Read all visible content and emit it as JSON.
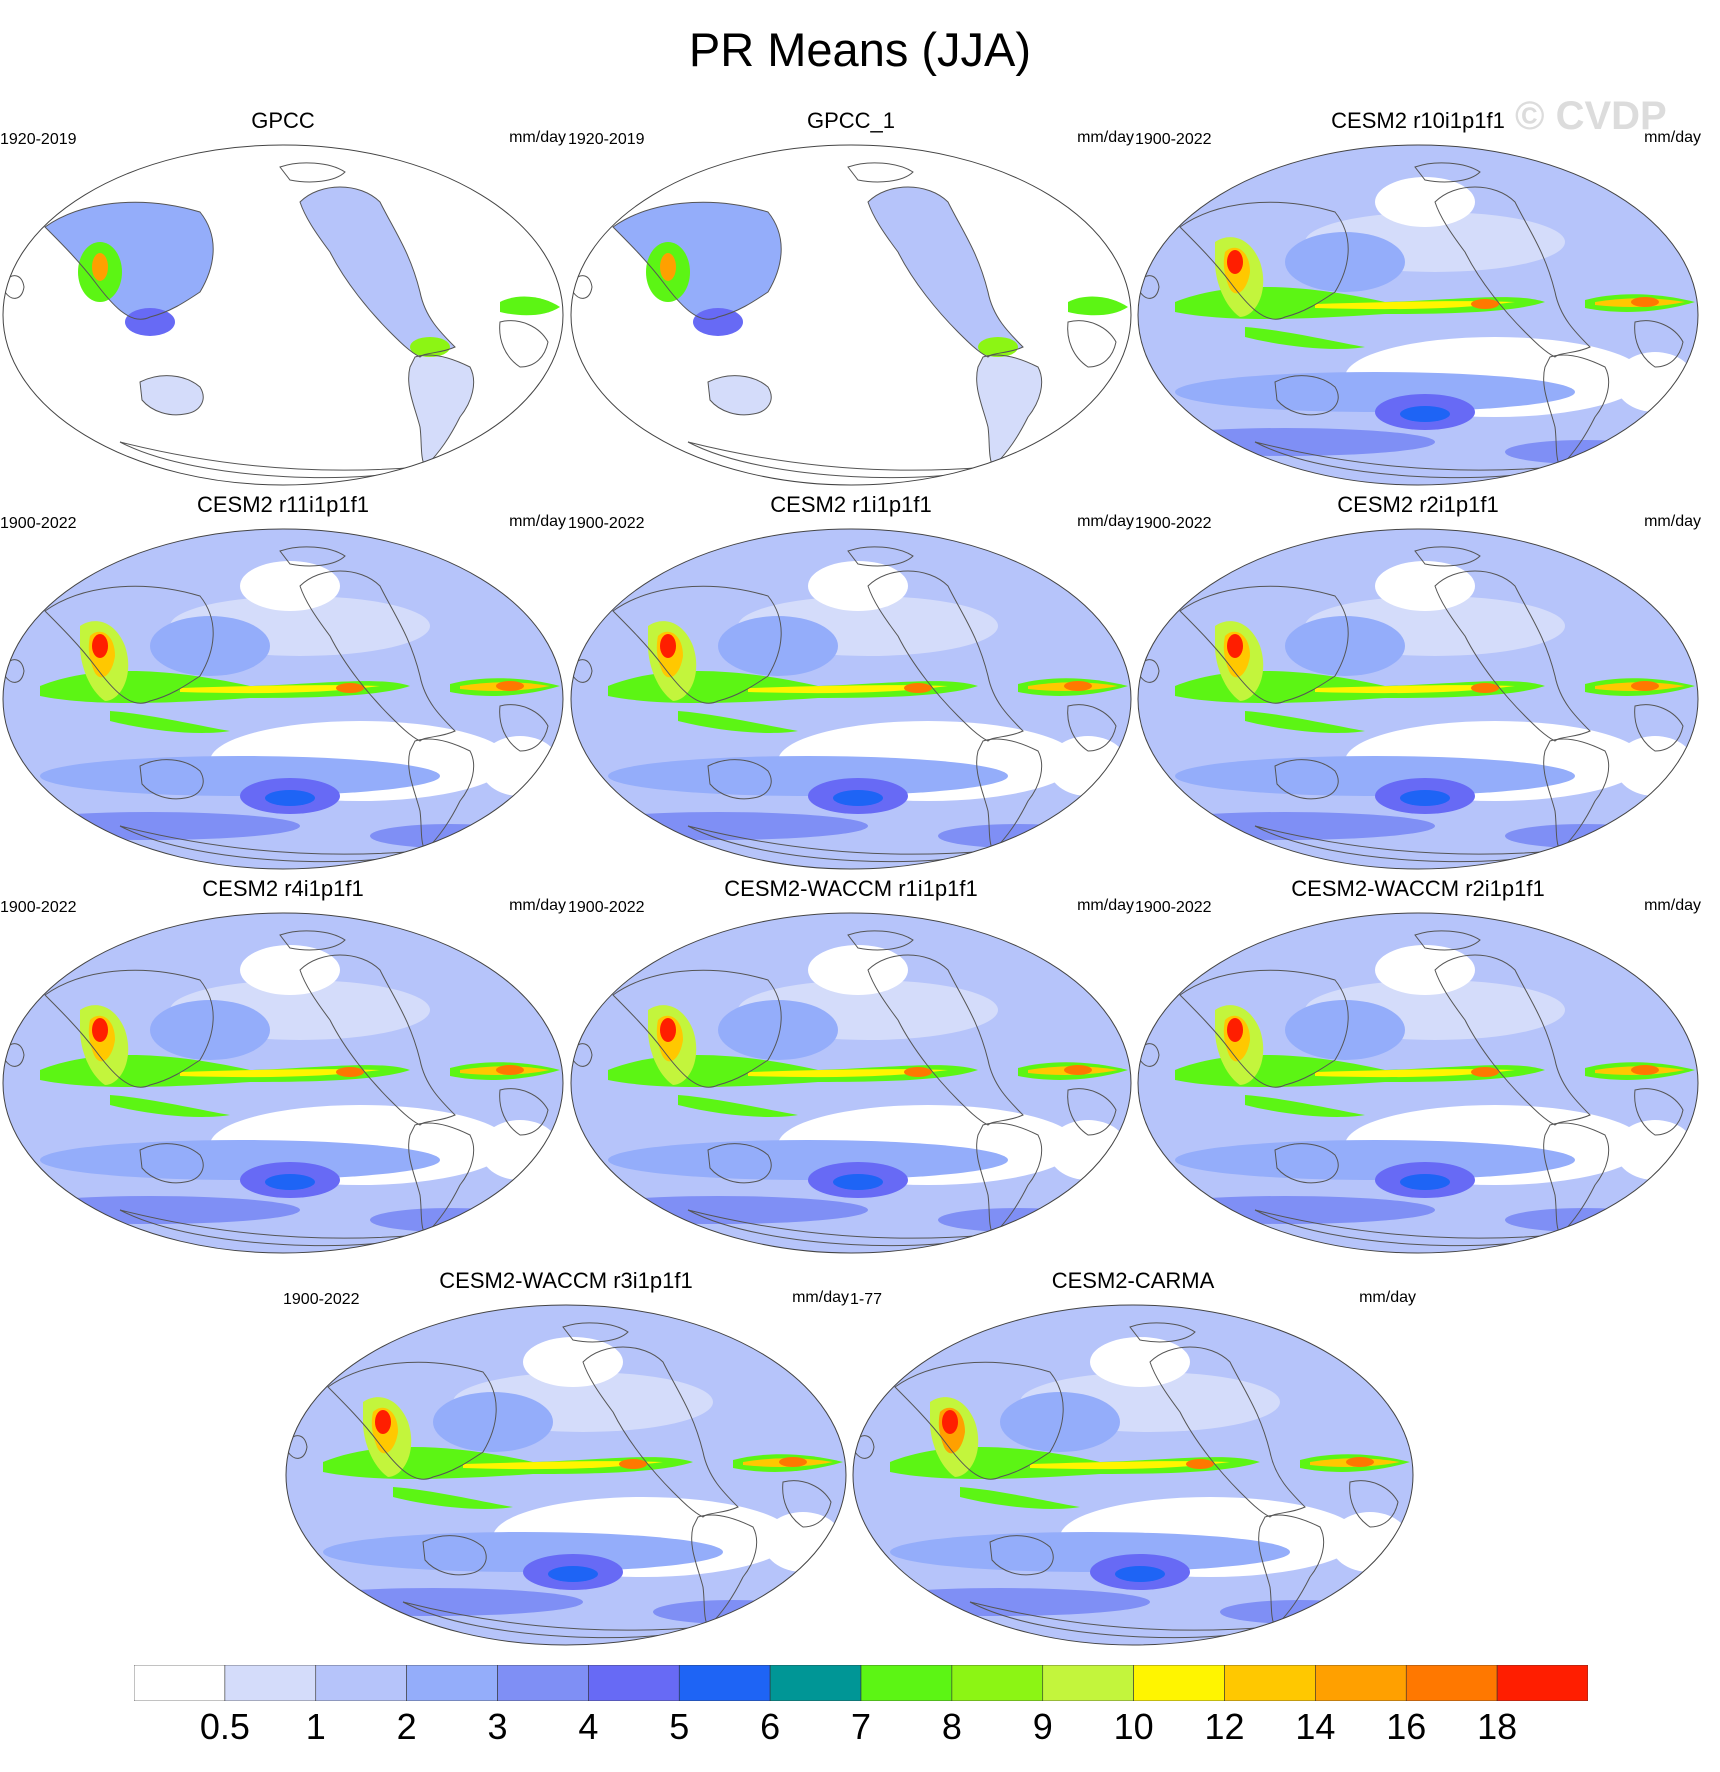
{
  "title": "PR Means (JJA)",
  "watermark": "© CVDP",
  "panels": [
    {
      "name": "GPCC",
      "period": "1920-2019",
      "units": "mm/day",
      "type": "obs"
    },
    {
      "name": "GPCC_1",
      "period": "1920-2019",
      "units": "mm/day",
      "type": "obs"
    },
    {
      "name": "CESM2 r10i1p1f1",
      "period": "1900-2022",
      "units": "mm/day",
      "type": "model"
    },
    {
      "name": "CESM2 r11i1p1f1",
      "period": "1900-2022",
      "units": "mm/day",
      "type": "model"
    },
    {
      "name": "CESM2 r1i1p1f1",
      "period": "1900-2022",
      "units": "mm/day",
      "type": "model"
    },
    {
      "name": "CESM2 r2i1p1f1",
      "period": "1900-2022",
      "units": "mm/day",
      "type": "model"
    },
    {
      "name": "CESM2 r4i1p1f1",
      "period": "1900-2022",
      "units": "mm/day",
      "type": "model"
    },
    {
      "name": "CESM2-WACCM r1i1p1f1",
      "period": "1900-2022",
      "units": "mm/day",
      "type": "model"
    },
    {
      "name": "CESM2-WACCM r2i1p1f1",
      "period": "1900-2022",
      "units": "mm/day",
      "type": "model"
    },
    {
      "name": "CESM2-WACCM r3i1p1f1",
      "period": "1900-2022",
      "units": "mm/day",
      "type": "model"
    },
    {
      "name": "CESM2-CARMA",
      "period": "1-77",
      "units": "mm/day",
      "type": "model"
    }
  ],
  "colorbar": {
    "labels": [
      "0.5",
      "1",
      "2",
      "3",
      "4",
      "5",
      "6",
      "7",
      "8",
      "9",
      "10",
      "12",
      "14",
      "16",
      "18"
    ],
    "colors": [
      "#ffffff",
      "#d4dcfa",
      "#b6c4fa",
      "#94adfa",
      "#7f8ff5",
      "#676af5",
      "#1e64f5",
      "#009696",
      "#5cf514",
      "#8cf514",
      "#c3f53c",
      "#fff500",
      "#ffc800",
      "#ffa000",
      "#ff7800",
      "#ff1e00"
    ]
  }
}
